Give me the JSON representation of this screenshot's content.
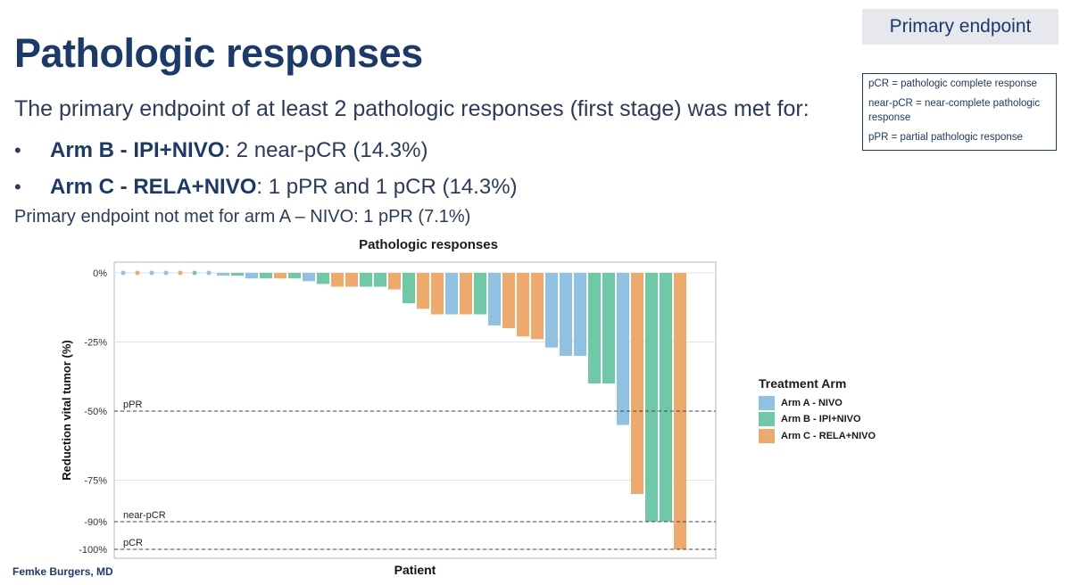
{
  "slide": {
    "title": "Pathologic responses",
    "endpoint_badge": "Primary endpoint",
    "abbreviations": [
      "pCR = pathologic complete response",
      "near-pCR = near-complete pathologic response",
      "pPR = partial pathologic response"
    ],
    "intro": "The primary endpoint of at least 2 pathologic responses (first stage) was met for:",
    "bullets": [
      {
        "bold": "Arm B - IPI+NIVO",
        "rest": ": 2 near-pCR (14.3%)"
      },
      {
        "bold": "Arm C - RELA+NIVO",
        "rest": ": 1 pPR and 1 pCR (14.3%)"
      }
    ],
    "not_met": "Primary endpoint not met for arm A – NIVO: 1 pPR (7.1%)",
    "footer": "Femke Burgers, MD"
  },
  "chart_data": {
    "type": "bar",
    "title": "Pathologic responses",
    "xlabel": "Patient",
    "ylabel": "Reduction vital tumor (%)",
    "yticks": [
      "0%",
      "-25%",
      "-50%",
      "-75%",
      "-90%",
      "-100%"
    ],
    "ytick_values": [
      0,
      -25,
      -50,
      -75,
      -90,
      -100
    ],
    "ylim": [
      -100,
      0
    ],
    "reference_lines": [
      {
        "label": "pPR",
        "value": -50
      },
      {
        "label": "near-pCR",
        "value": -90
      },
      {
        "label": "pCR",
        "value": -100
      }
    ],
    "legend": {
      "title": "Treatment Arm",
      "position": "right",
      "items": [
        {
          "name": "Arm A - NIVO",
          "color": "#8fc1e3"
        },
        {
          "name": "Arm B - IPI+NIVO",
          "color": "#6fc8a6"
        },
        {
          "name": "Arm C - RELA+NIVO",
          "color": "#eeaa6c"
        }
      ]
    },
    "bars": [
      {
        "arm": "A",
        "value": 0
      },
      {
        "arm": "C",
        "value": 0
      },
      {
        "arm": "A",
        "value": 0
      },
      {
        "arm": "A",
        "value": 0
      },
      {
        "arm": "C",
        "value": 0
      },
      {
        "arm": "B",
        "value": 0
      },
      {
        "arm": "A",
        "value": 0
      },
      {
        "arm": "A",
        "value": -1
      },
      {
        "arm": "B",
        "value": -1
      },
      {
        "arm": "A",
        "value": -2
      },
      {
        "arm": "B",
        "value": -2
      },
      {
        "arm": "C",
        "value": -2
      },
      {
        "arm": "B",
        "value": -2
      },
      {
        "arm": "A",
        "value": -3
      },
      {
        "arm": "B",
        "value": -4
      },
      {
        "arm": "C",
        "value": -5
      },
      {
        "arm": "C",
        "value": -5
      },
      {
        "arm": "B",
        "value": -5
      },
      {
        "arm": "B",
        "value": -5
      },
      {
        "arm": "C",
        "value": -6
      },
      {
        "arm": "B",
        "value": -11
      },
      {
        "arm": "C",
        "value": -13
      },
      {
        "arm": "C",
        "value": -15
      },
      {
        "arm": "A",
        "value": -15
      },
      {
        "arm": "C",
        "value": -15
      },
      {
        "arm": "B",
        "value": -15
      },
      {
        "arm": "A",
        "value": -19
      },
      {
        "arm": "C",
        "value": -20
      },
      {
        "arm": "C",
        "value": -23
      },
      {
        "arm": "C",
        "value": -24
      },
      {
        "arm": "A",
        "value": -27
      },
      {
        "arm": "A",
        "value": -30
      },
      {
        "arm": "A",
        "value": -30
      },
      {
        "arm": "B",
        "value": -40
      },
      {
        "arm": "B",
        "value": -40
      },
      {
        "arm": "A",
        "value": -55
      },
      {
        "arm": "C",
        "value": -80
      },
      {
        "arm": "B",
        "value": -90
      },
      {
        "arm": "B",
        "value": -90
      },
      {
        "arm": "C",
        "value": -100
      }
    ]
  }
}
